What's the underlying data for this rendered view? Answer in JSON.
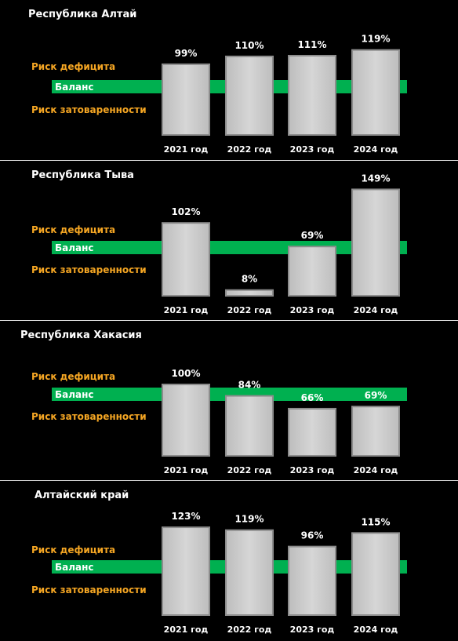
{
  "colors": {
    "background": "#000000",
    "balance_band": "#00b050",
    "risk_text": "#f5a623",
    "bar_fill": "#d6d6d6",
    "divider": "#d9d9d9"
  },
  "chart_data": [
    {
      "type": "bar",
      "title": "Республика Алтай",
      "categories": [
        "2021 год",
        "2022 год",
        "2023 год",
        "2024 год"
      ],
      "values": [
        99,
        110,
        111,
        119
      ],
      "value_labels": [
        "99%",
        "110%",
        "111%",
        "119%"
      ],
      "annotations": {
        "deficit": "Риск дефицита",
        "balance": "Баланс",
        "surplus": "Риск затоваренности"
      }
    },
    {
      "type": "bar",
      "title": "Республика Тыва",
      "categories": [
        "2021 год",
        "2022 год",
        "2023 год",
        "2024 год"
      ],
      "values": [
        102,
        8,
        69,
        149
      ],
      "value_labels": [
        "102%",
        "8%",
        "69%",
        "149%"
      ],
      "annotations": {
        "deficit": "Риск дефицита",
        "balance": "Баланс",
        "surplus": "Риск затоваренности"
      }
    },
    {
      "type": "bar",
      "title": "Республика Хакасия",
      "categories": [
        "2021 год",
        "2022 год",
        "2023 год",
        "2024 год"
      ],
      "values": [
        100,
        84,
        66,
        69
      ],
      "value_labels": [
        "100%",
        "84%",
        "66%",
        "69%"
      ],
      "annotations": {
        "deficit": "Риск дефицита",
        "balance": "Баланс",
        "surplus": "Риск затоваренности"
      }
    },
    {
      "type": "bar",
      "title": "Алтайский край",
      "categories": [
        "2021 год",
        "2022 год",
        "2023 год",
        "2024 год"
      ],
      "values": [
        123,
        119,
        96,
        115
      ],
      "value_labels": [
        "123%",
        "119%",
        "96%",
        "115%"
      ],
      "annotations": {
        "deficit": "Риск дефицита",
        "balance": "Баланс",
        "surplus": "Риск затоваренности"
      }
    }
  ]
}
